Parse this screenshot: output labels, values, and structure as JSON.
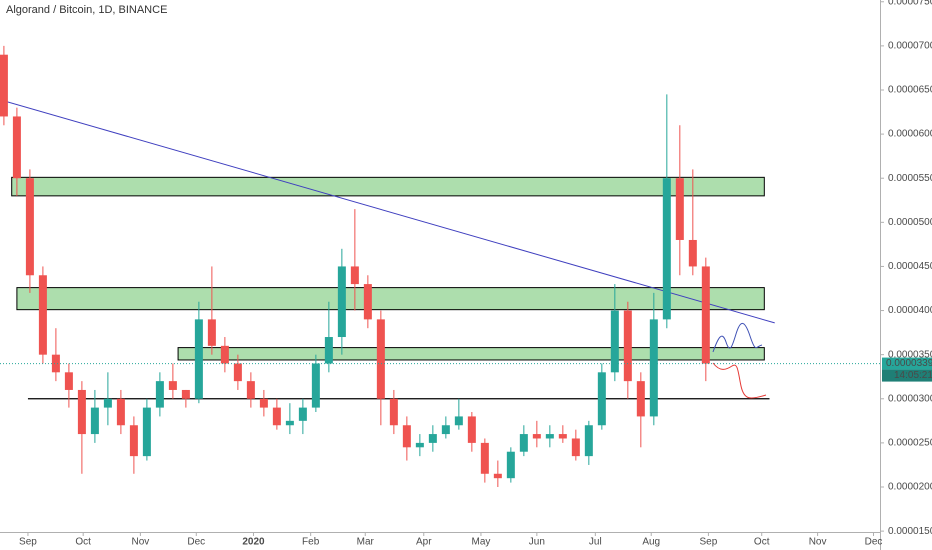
{
  "chart_data": {
    "type": "candlestick",
    "title": "Algorand / Bitcoin, 1D, BINANCE",
    "open": [
      6.9e-05,
      6.2e-05,
      5.5e-05,
      4.4e-05,
      3.5e-05,
      3.3e-05,
      3.1e-05,
      2.6e-05,
      2.9e-05,
      3e-05,
      2.7e-05,
      2.35e-05,
      2.9e-05,
      3.2e-05,
      3.1e-05,
      3e-05,
      3.9e-05,
      3.6e-05,
      3.4e-05,
      3.2e-05,
      3e-05,
      2.9e-05,
      2.7e-05,
      2.75e-05,
      2.9e-05,
      3.4e-05,
      3.7e-05,
      4.5e-05,
      4.3e-05,
      3.9e-05,
      3e-05,
      2.7e-05,
      2.45e-05,
      2.5e-05,
      2.6e-05,
      2.7e-05,
      2.8e-05,
      2.5e-05,
      2.15e-05,
      2.1e-05,
      2.4e-05,
      2.6e-05,
      2.55e-05,
      2.6e-05,
      2.55e-05,
      2.35e-05,
      2.7e-05,
      3.3e-05,
      4e-05,
      3.2e-05,
      2.8e-05,
      3.9e-05,
      5.5e-05,
      4.8e-05,
      4.5e-05
    ],
    "high": [
      7e-05,
      6.3e-05,
      5.6e-05,
      4.5e-05,
      3.8e-05,
      3.4e-05,
      3.2e-05,
      3.1e-05,
      3.3e-05,
      3.1e-05,
      2.8e-05,
      3e-05,
      3.3e-05,
      3.4e-05,
      3.1e-05,
      4.1e-05,
      4.5e-05,
      3.7e-05,
      3.5e-05,
      3.3e-05,
      3.1e-05,
      3e-05,
      2.95e-05,
      3e-05,
      3.5e-05,
      4.1e-05,
      4.7e-05,
      5.15e-05,
      4.4e-05,
      4e-05,
      3.1e-05,
      2.8e-05,
      2.6e-05,
      2.7e-05,
      2.8e-05,
      3e-05,
      2.85e-05,
      2.55e-05,
      2.3e-05,
      2.45e-05,
      2.7e-05,
      2.75e-05,
      2.7e-05,
      2.7e-05,
      2.65e-05,
      2.75e-05,
      3.4e-05,
      4.3e-05,
      4.1e-05,
      3.3e-05,
      4.2e-05,
      6.45e-05,
      6.1e-05,
      5.6e-05,
      4.6e-05
    ],
    "low": [
      6.1e-05,
      5.3e-05,
      4.2e-05,
      3.4e-05,
      3.2e-05,
      2.9e-05,
      2.15e-05,
      2.5e-05,
      2.7e-05,
      2.6e-05,
      2.15e-05,
      2.3e-05,
      2.8e-05,
      3e-05,
      2.9e-05,
      2.95e-05,
      3.5e-05,
      3.3e-05,
      3.1e-05,
      2.9e-05,
      2.8e-05,
      2.65e-05,
      2.6e-05,
      2.6e-05,
      2.85e-05,
      3.3e-05,
      3.5e-05,
      4e-05,
      3.8e-05,
      2.7e-05,
      2.6e-05,
      2.3e-05,
      2.35e-05,
      2.4e-05,
      2.55e-05,
      2.65e-05,
      2.4e-05,
      2.05e-05,
      2e-05,
      2.05e-05,
      2.35e-05,
      2.45e-05,
      2.45e-05,
      2.5e-05,
      2.3e-05,
      2.25e-05,
      2.65e-05,
      3.2e-05,
      3e-05,
      2.45e-05,
      2.7e-05,
      3.8e-05,
      4.4e-05,
      4.4e-05,
      3.2e-05
    ],
    "close": [
      6.2e-05,
      5.5e-05,
      4.4e-05,
      3.5e-05,
      3.3e-05,
      3.1e-05,
      2.6e-05,
      2.9e-05,
      3e-05,
      2.7e-05,
      2.35e-05,
      2.9e-05,
      3.2e-05,
      3.1e-05,
      3e-05,
      3.9e-05,
      3.6e-05,
      3.4e-05,
      3.2e-05,
      3e-05,
      2.9e-05,
      2.7e-05,
      2.75e-05,
      2.9e-05,
      3.4e-05,
      3.7e-05,
      4.5e-05,
      4.3e-05,
      3.9e-05,
      3e-05,
      2.7e-05,
      2.45e-05,
      2.5e-05,
      2.6e-05,
      2.7e-05,
      2.8e-05,
      2.5e-05,
      2.15e-05,
      2.1e-05,
      2.4e-05,
      2.6e-05,
      2.55e-05,
      2.6e-05,
      2.55e-05,
      2.35e-05,
      2.7e-05,
      3.3e-05,
      4e-05,
      3.2e-05,
      2.8e-05,
      3.9e-05,
      5.5e-05,
      4.8e-05,
      4.5e-05,
      3.399e-05
    ],
    "up_color": "#26a69a",
    "down_color": "#ef5350",
    "xlim": [
      -0.3,
      67.4
    ],
    "ylim": [
      1.49e-05,
      7.52e-05
    ],
    "xticks": [
      {
        "value": 1.85,
        "label": "Sep"
      },
      {
        "value": 6.1,
        "label": "Oct"
      },
      {
        "value": 10.5,
        "label": "Nov"
      },
      {
        "value": 14.8,
        "label": "Dec"
      },
      {
        "value": 19.2,
        "label": "2020"
      },
      {
        "value": 23.6,
        "label": "Feb"
      },
      {
        "value": 27.8,
        "label": "Mar"
      },
      {
        "value": 32.3,
        "label": "Apr"
      },
      {
        "value": 36.7,
        "label": "May"
      },
      {
        "value": 41,
        "label": "Jun"
      },
      {
        "value": 45.5,
        "label": "Jul"
      },
      {
        "value": 49.8,
        "label": "Aug"
      },
      {
        "value": 54.2,
        "label": "Sep"
      },
      {
        "value": 58.3,
        "label": "Oct"
      },
      {
        "value": 62.6,
        "label": "Nov"
      },
      {
        "value": 66.9,
        "label": "Dec"
      }
    ],
    "yticks": [
      {
        "value": 1.5e-05,
        "label": "0.00001500"
      },
      {
        "value": 2e-05,
        "label": "0.00002000"
      },
      {
        "value": 2.5e-05,
        "label": "0.00002500"
      },
      {
        "value": 3e-05,
        "label": "0.00003000"
      },
      {
        "value": 3.5e-05,
        "label": "0.00003500"
      },
      {
        "value": 4e-05,
        "label": "0.00004000"
      },
      {
        "value": 4.5e-05,
        "label": "0.00004500"
      },
      {
        "value": 5e-05,
        "label": "0.00005000"
      },
      {
        "value": 5.5e-05,
        "label": "0.00005500"
      },
      {
        "value": 6e-05,
        "label": "0.00006000"
      },
      {
        "value": 6.5e-05,
        "label": "0.00006500"
      },
      {
        "value": 7e-05,
        "label": "0.00007000"
      },
      {
        "value": 7.5e-05,
        "label": "0.00007500"
      }
    ],
    "last_price": {
      "value": 3.399e-05,
      "label": "0.00003399",
      "countdown": "14:05:21"
    },
    "zones": [
      {
        "low": 5.3e-05,
        "high": 5.51e-05,
        "from": 0.6,
        "to": 58.5
      },
      {
        "low": 4.01e-05,
        "high": 4.26e-05,
        "from": 1.0,
        "to": 58.5
      },
      {
        "low": 3.44e-05,
        "high": 3.58e-05,
        "from": 13.4,
        "to": 58.5
      }
    ],
    "support": {
      "value": 3e-05,
      "from": 1.85,
      "to": 58.9
    },
    "trendline": {
      "x": [
        -0.3,
        59.3
      ],
      "y": [
        6.39e-05,
        3.86e-05
      ]
    }
  }
}
